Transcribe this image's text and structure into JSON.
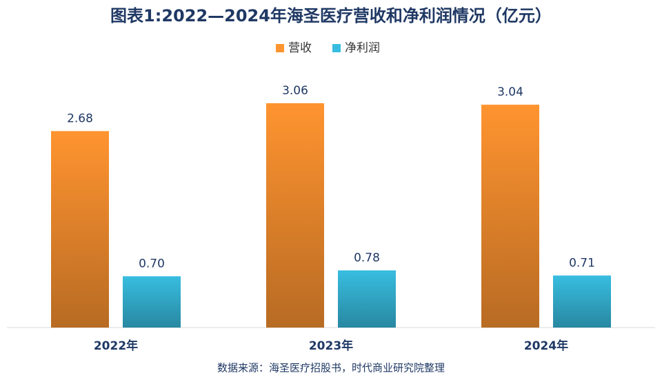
{
  "chart_data": {
    "type": "bar",
    "title": "图表1:2022—2024年海圣医疗营收和净利润情况（亿元）",
    "categories": [
      "2022年",
      "2023年",
      "2024年"
    ],
    "series": [
      {
        "name": "营收",
        "color": "#ff9430",
        "values": [
          2.68,
          3.06,
          3.04
        ],
        "value_labels": [
          "2.68",
          "3.06",
          "3.04"
        ]
      },
      {
        "name": "净利润",
        "color": "#38bde0",
        "values": [
          0.7,
          0.78,
          0.71
        ],
        "value_labels": [
          "0.70",
          "0.78",
          "0.71"
        ]
      }
    ],
    "legend": "top",
    "source": "数据来源：海圣医疗招股书，时代商业研究院整理"
  }
}
